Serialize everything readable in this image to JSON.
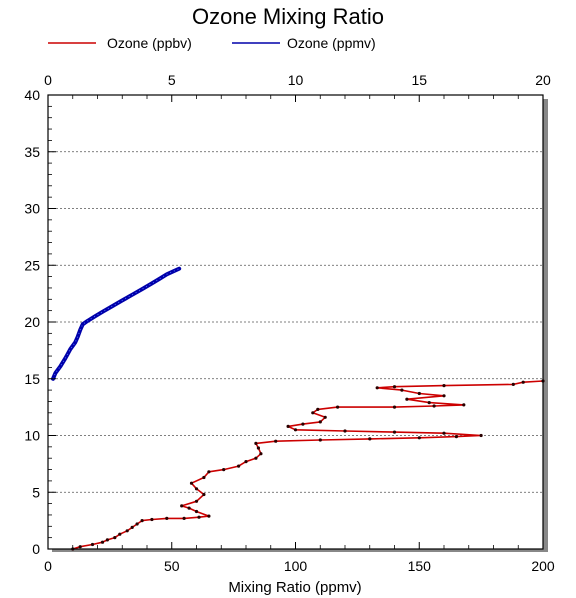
{
  "chart_data": {
    "type": "line",
    "title": "Ozone Mixing Ratio",
    "xlabel": "Mixing Ratio (ppmv)",
    "ylabel": "",
    "xlim_bottom": [
      0,
      200
    ],
    "xlim_top": [
      0,
      20
    ],
    "ylim": [
      0,
      40
    ],
    "x_ticks_bottom": [
      "0",
      "50",
      "100",
      "150",
      "200"
    ],
    "x_ticks_top": [
      "0",
      "5",
      "10",
      "15",
      "20"
    ],
    "y_ticks": [
      "0",
      "5",
      "10",
      "15",
      "20",
      "25",
      "30",
      "35",
      "40"
    ],
    "grid": "horizontal-dotted",
    "legend_position": "top",
    "series": [
      {
        "name": "Ozone (ppbv)",
        "axis": "bottom",
        "color": "#cc0000",
        "points": [
          [
            10,
            0.0
          ],
          [
            13,
            0.2
          ],
          [
            18,
            0.4
          ],
          [
            22,
            0.6
          ],
          [
            24,
            0.8
          ],
          [
            27,
            1.0
          ],
          [
            29,
            1.3
          ],
          [
            32,
            1.6
          ],
          [
            34,
            1.9
          ],
          [
            36,
            2.2
          ],
          [
            38,
            2.5
          ],
          [
            42,
            2.6
          ],
          [
            48,
            2.7
          ],
          [
            55,
            2.7
          ],
          [
            61,
            2.8
          ],
          [
            65,
            2.9
          ],
          [
            60,
            3.3
          ],
          [
            57,
            3.6
          ],
          [
            54,
            3.8
          ],
          [
            60,
            4.2
          ],
          [
            63,
            4.8
          ],
          [
            60,
            5.3
          ],
          [
            58,
            5.8
          ],
          [
            63,
            6.3
          ],
          [
            65,
            6.8
          ],
          [
            71,
            7.0
          ],
          [
            77,
            7.3
          ],
          [
            80,
            7.7
          ],
          [
            84,
            8.0
          ],
          [
            86,
            8.4
          ],
          [
            85,
            8.9
          ],
          [
            84,
            9.3
          ],
          [
            92,
            9.5
          ],
          [
            110,
            9.6
          ],
          [
            130,
            9.7
          ],
          [
            150,
            9.8
          ],
          [
            165,
            9.9
          ],
          [
            175,
            10.0
          ],
          [
            160,
            10.2
          ],
          [
            140,
            10.3
          ],
          [
            120,
            10.4
          ],
          [
            100,
            10.5
          ],
          [
            97,
            10.8
          ],
          [
            103,
            11.0
          ],
          [
            110,
            11.2
          ],
          [
            112,
            11.6
          ],
          [
            107,
            12.0
          ],
          [
            109,
            12.3
          ],
          [
            117,
            12.5
          ],
          [
            140,
            12.5
          ],
          [
            156,
            12.6
          ],
          [
            168,
            12.7
          ],
          [
            154,
            12.9
          ],
          [
            145,
            13.2
          ],
          [
            160,
            13.5
          ],
          [
            150,
            13.7
          ],
          [
            143,
            14.0
          ],
          [
            133,
            14.2
          ],
          [
            140,
            14.3
          ],
          [
            160,
            14.4
          ],
          [
            188,
            14.5
          ],
          [
            192,
            14.7
          ],
          [
            200,
            14.8
          ]
        ]
      },
      {
        "name": "Ozone (ppmv)",
        "axis": "top",
        "color": "#0000aa",
        "points": [
          [
            0.2,
            15.0
          ],
          [
            0.3,
            15.5
          ],
          [
            0.5,
            16.1
          ],
          [
            0.7,
            16.8
          ],
          [
            0.8,
            17.2
          ],
          [
            0.9,
            17.6
          ],
          [
            1.1,
            18.2
          ],
          [
            1.2,
            18.7
          ],
          [
            1.3,
            19.3
          ],
          [
            1.4,
            19.8
          ],
          [
            1.6,
            20.1
          ],
          [
            1.9,
            20.5
          ],
          [
            2.2,
            20.9
          ],
          [
            2.6,
            21.4
          ],
          [
            3.0,
            21.9
          ],
          [
            3.4,
            22.4
          ],
          [
            3.8,
            22.9
          ],
          [
            4.2,
            23.4
          ],
          [
            4.5,
            23.8
          ],
          [
            4.8,
            24.2
          ],
          [
            5.1,
            24.5
          ],
          [
            5.3,
            24.7
          ]
        ]
      }
    ]
  }
}
